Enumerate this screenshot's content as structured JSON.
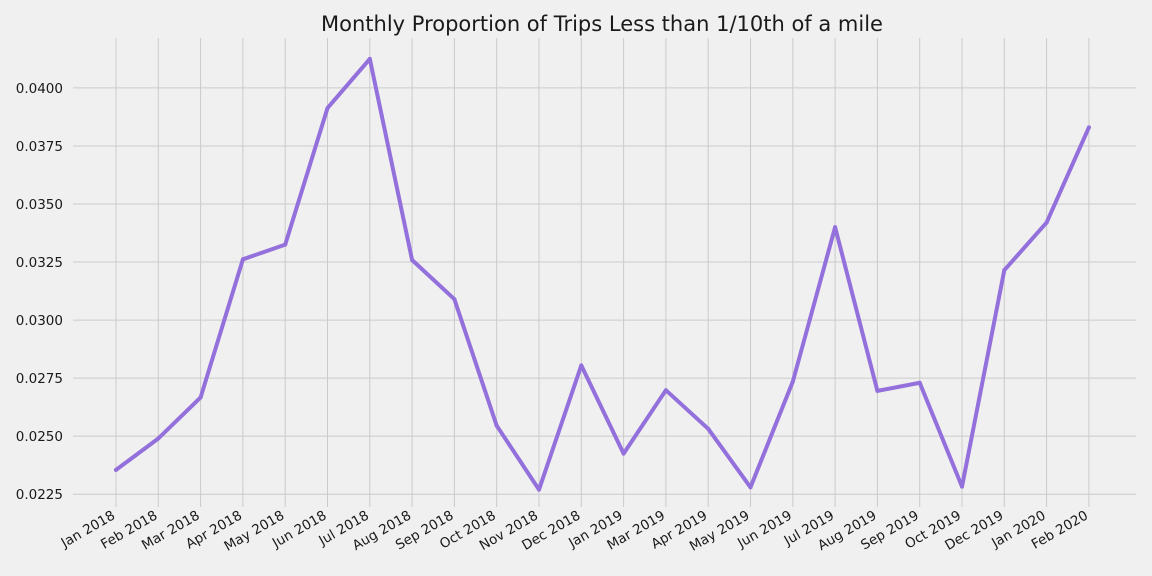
{
  "chart_data": {
    "type": "line",
    "title": "Monthly Proportion of Trips Less than 1/10th of a mile",
    "xlabel": "",
    "ylabel": "",
    "categories": [
      "Jan 2018",
      "Feb 2018",
      "Mar 2018",
      "Apr 2018",
      "May 2018",
      "Jun 2018",
      "Jul 2018",
      "Aug 2018",
      "Sep 2018",
      "Oct 2018",
      "Nov 2018",
      "Dec 2018",
      "Jan 2019",
      "Mar 2019",
      "Apr 2019",
      "May 2019",
      "Jun 2019",
      "Jul 2019",
      "Aug 2019",
      "Sep 2019",
      "Oct 2019",
      "Dec 2019",
      "Jan 2020",
      "Feb 2020"
    ],
    "series": [
      {
        "values": [
          0.02355,
          0.0249,
          0.02667,
          0.03262,
          0.03325,
          0.03913,
          0.04125,
          0.03259,
          0.0309,
          0.02545,
          0.0227,
          0.02805,
          0.02425,
          0.02698,
          0.02532,
          0.0228,
          0.02735,
          0.034,
          0.02695,
          0.0273,
          0.02283,
          0.03215,
          0.0342,
          0.0383
        ],
        "color": "#9370db"
      }
    ],
    "y_ticks": [
      "0.0225",
      "0.0250",
      "0.0275",
      "0.0300",
      "0.0325",
      "0.0350",
      "0.0375",
      "0.0400"
    ],
    "ylim": [
      0.02195,
      0.04215
    ],
    "grid": true,
    "background": "#f0f0f0",
    "grid_color": "#cbcbcb"
  }
}
